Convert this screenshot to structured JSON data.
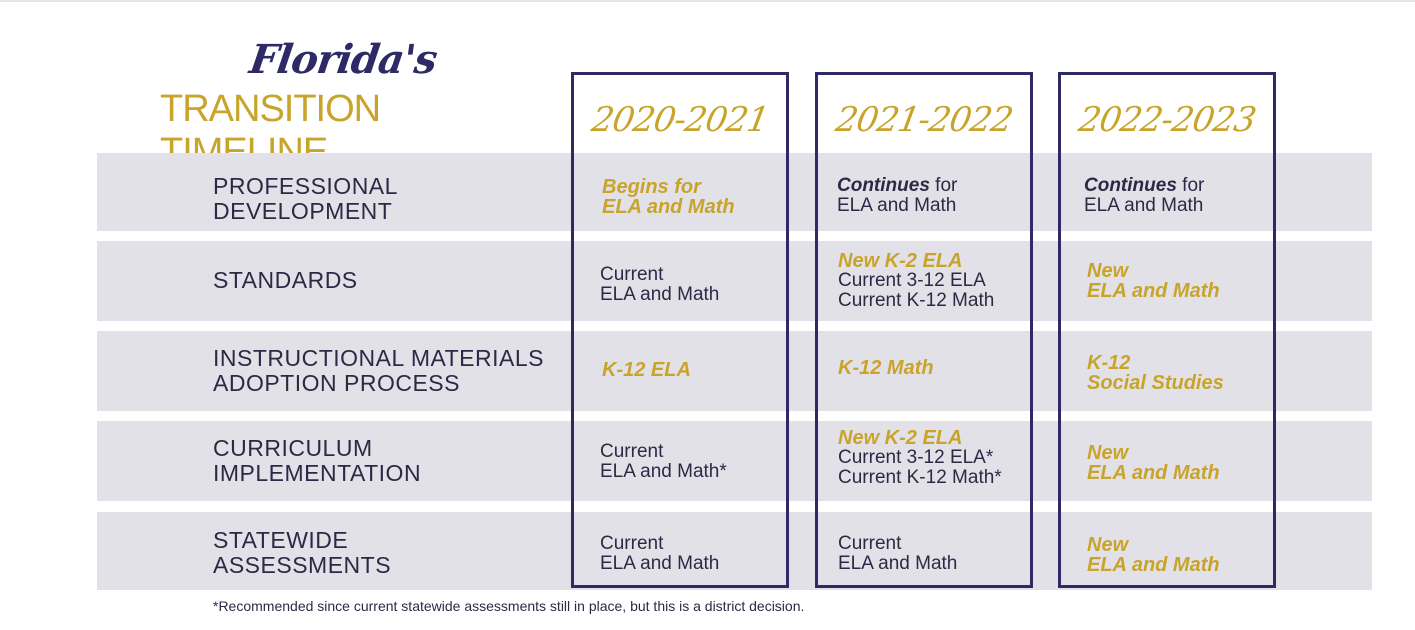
{
  "title": {
    "script": "Florida's",
    "main": "TRANSITION TIMELINE"
  },
  "years": [
    "2020-2021",
    "2021-2022",
    "2022-2023"
  ],
  "rows": [
    {
      "label": [
        "PROFESSIONAL",
        "DEVELOPMENT"
      ]
    },
    {
      "label": [
        "STANDARDS"
      ]
    },
    {
      "label": [
        "INSTRUCTIONAL MATERIALS",
        "ADOPTION PROCESS"
      ]
    },
    {
      "label": [
        "CURRICULUM",
        "IMPLEMENTATION"
      ]
    },
    {
      "label": [
        "STATEWIDE",
        "ASSESSMENTS"
      ]
    }
  ],
  "cells": {
    "pd": {
      "c1": [
        "Begins for",
        "ELA and Math"
      ],
      "c2": {
        "em": "Continues",
        "rest": " for",
        "line2": "ELA and Math"
      },
      "c3": {
        "em": "Continues",
        "rest": " for",
        "line2": "ELA and Math"
      }
    },
    "standards": {
      "c1": [
        "Current",
        "ELA and Math"
      ],
      "c2": {
        "gold": "New K-2 ELA",
        "lines": [
          "Current 3-12 ELA",
          "Current K-12 Math"
        ]
      },
      "c3": [
        "New",
        "ELA and Math"
      ]
    },
    "materials": {
      "c1": "K-12 ELA",
      "c2": "K-12 Math",
      "c3": [
        "K-12",
        "Social Studies"
      ]
    },
    "curriculum": {
      "c1": [
        "Current",
        "ELA and Math*"
      ],
      "c2": {
        "gold": "New K-2 ELA",
        "lines": [
          "Current 3-12 ELA*",
          "Current K-12 Math*"
        ]
      },
      "c3": [
        "New",
        "ELA and Math"
      ]
    },
    "assessments": {
      "c1": [
        "Current",
        "ELA and Math"
      ],
      "c2": [
        "Current",
        "ELA and Math"
      ],
      "c3": [
        "New",
        "ELA and Math"
      ]
    }
  },
  "footnote": "*Recommended since current statewide assessments still in place, but this is a district decision.",
  "colors": {
    "navy": "#2e2a66",
    "gold": "#c9a42a",
    "band": "#e2e1e8"
  }
}
